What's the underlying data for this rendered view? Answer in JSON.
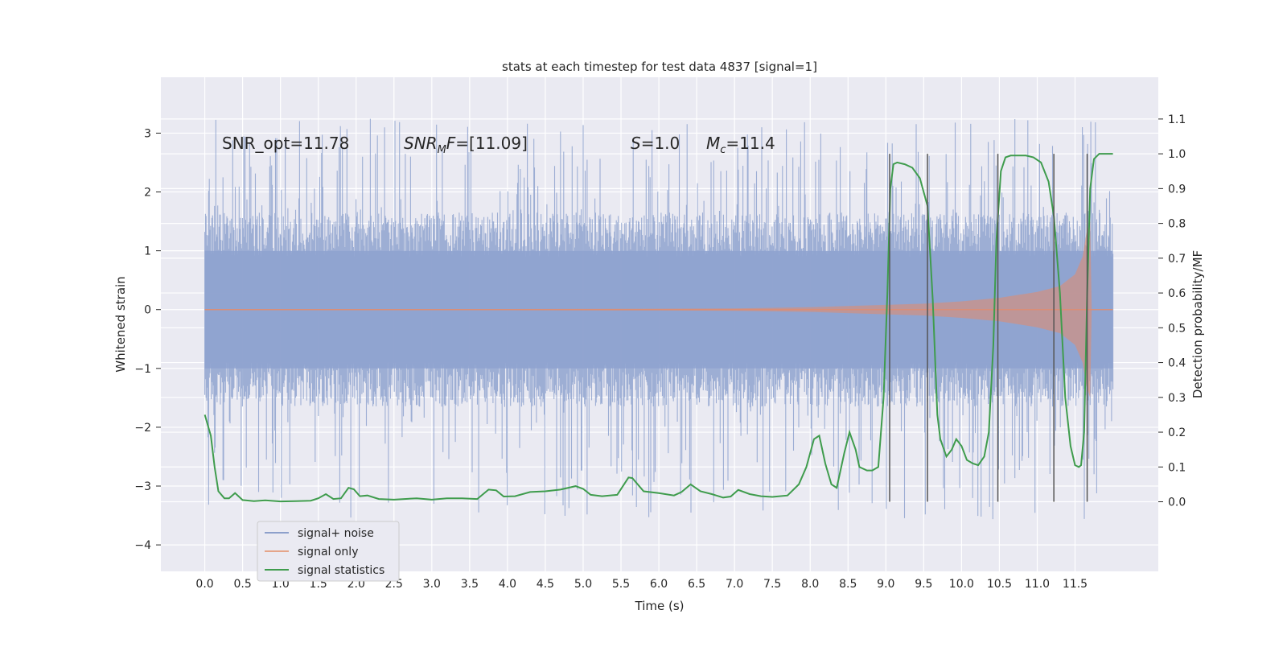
{
  "chart_data": {
    "type": "line",
    "title": "stats at each timestep for test data 4837 [signal=1]",
    "xlabel": "Time (s)",
    "ylabel_left": "Whitened strain",
    "ylabel_right": "Detection probability/MF",
    "xlim": [
      -0.58,
      12.6
    ],
    "ylim_left": [
      -4.45,
      3.95
    ],
    "ylim_right": [
      -0.2,
      1.22
    ],
    "x_ticks": [
      0.0,
      0.5,
      1.0,
      1.5,
      2.0,
      2.5,
      3.0,
      3.5,
      4.0,
      4.5,
      5.0,
      5.5,
      6.0,
      6.5,
      7.0,
      7.5,
      8.0,
      8.5,
      9.0,
      9.5,
      10.0,
      10.5,
      11.0,
      11.5
    ],
    "x_tick_labels": [
      "0.0",
      "0.5",
      "1.0",
      "1.5",
      "2.0",
      "2.5",
      "3.0",
      "3.5",
      "4.0",
      "4.5",
      "5.0",
      "5.5",
      "6.0",
      "6.5",
      "7.0",
      "7.5",
      "8.0",
      "8.5",
      "9.0",
      "9.5",
      "10.0",
      "10.5",
      "11.0",
      "11.5"
    ],
    "y_left_ticks": [
      3,
      2,
      1,
      0,
      -1,
      -2,
      -3,
      -4
    ],
    "y_left_tick_labels": [
      "3",
      "2",
      "1",
      "0",
      "−1",
      "−2",
      "−3",
      "−4"
    ],
    "y_right_ticks": [
      0.0,
      0.1,
      0.2,
      0.3,
      0.4,
      0.5,
      0.6,
      0.7,
      0.8,
      0.9,
      1.0,
      1.1
    ],
    "y_right_tick_labels": [
      "0.0",
      "0.1",
      "0.2",
      "0.3",
      "0.4",
      "0.5",
      "0.6",
      "0.7",
      "0.8",
      "0.9",
      "1.0",
      "1.1"
    ],
    "annotations": [
      {
        "text": "SNR_opt=11.78",
        "x": 0.2,
        "y": 2.7
      },
      {
        "text": "SNR_MF=[11.09]",
        "x": 2.6,
        "y": 2.7
      },
      {
        "text": "S=1.0",
        "x": 5.6,
        "y": 2.7
      },
      {
        "text": "M_c=11.4",
        "x": 6.6,
        "y": 2.7
      }
    ],
    "detection_lines_x": [
      9.05,
      9.55,
      10.48,
      11.22,
      11.66
    ],
    "detection_lines_yrange": [
      0.0,
      1.0
    ],
    "noise": {
      "t_start": 0.0,
      "t_end": 12.0,
      "typical_amplitude": 1.5,
      "peak_amplitude_pos": 3.58,
      "peak_amplitude_neg": -4.08
    },
    "signal_envelope": {
      "t": [
        0.0,
        2.0,
        4.0,
        6.0,
        7.0,
        7.5,
        8.0,
        8.5,
        9.0,
        9.5,
        10.0,
        10.5,
        11.0,
        11.3,
        11.5,
        11.6,
        11.65,
        11.7,
        11.72,
        12.0
      ],
      "amp": [
        0.01,
        0.01,
        0.01,
        0.015,
        0.02,
        0.03,
        0.04,
        0.06,
        0.08,
        0.1,
        0.14,
        0.2,
        0.3,
        0.4,
        0.6,
        0.9,
        1.3,
        1.5,
        0.0,
        0.0
      ]
    },
    "series": [
      {
        "name": "signal statistics",
        "axis": "right",
        "x": [
          0.0,
          0.08,
          0.13,
          0.18,
          0.26,
          0.32,
          0.4,
          0.5,
          0.65,
          0.8,
          1.0,
          1.2,
          1.4,
          1.5,
          1.6,
          1.7,
          1.8,
          1.9,
          1.97,
          2.05,
          2.15,
          2.3,
          2.5,
          2.8,
          3.0,
          3.2,
          3.4,
          3.6,
          3.75,
          3.85,
          3.95,
          4.1,
          4.3,
          4.5,
          4.7,
          4.9,
          5.0,
          5.1,
          5.25,
          5.45,
          5.6,
          5.65,
          5.8,
          6.0,
          6.2,
          6.3,
          6.42,
          6.55,
          6.7,
          6.85,
          6.95,
          7.05,
          7.2,
          7.35,
          7.5,
          7.7,
          7.85,
          7.95,
          8.05,
          8.12,
          8.2,
          8.28,
          8.35,
          8.45,
          8.52,
          8.6,
          8.65,
          8.75,
          8.82,
          8.9,
          8.97,
          9.02,
          9.06,
          9.1,
          9.15,
          9.25,
          9.35,
          9.45,
          9.55,
          9.62,
          9.68,
          9.72,
          9.8,
          9.87,
          9.93,
          10.0,
          10.07,
          10.15,
          10.22,
          10.3,
          10.36,
          10.42,
          10.46,
          10.52,
          10.58,
          10.65,
          10.75,
          10.85,
          10.95,
          11.05,
          11.15,
          11.22,
          11.3,
          11.37,
          11.44,
          11.5,
          11.55,
          11.58,
          11.62,
          11.66,
          11.7,
          11.75,
          11.82,
          11.9,
          11.95,
          12.0
        ],
        "y": [
          0.25,
          0.19,
          0.1,
          0.03,
          0.01,
          0.01,
          0.025,
          0.005,
          0.002,
          0.004,
          0.001,
          0.002,
          0.003,
          0.01,
          0.022,
          0.008,
          0.01,
          0.04,
          0.036,
          0.016,
          0.018,
          0.008,
          0.006,
          0.01,
          0.006,
          0.01,
          0.01,
          0.008,
          0.035,
          0.033,
          0.015,
          0.016,
          0.028,
          0.03,
          0.035,
          0.045,
          0.037,
          0.02,
          0.016,
          0.02,
          0.07,
          0.068,
          0.03,
          0.025,
          0.018,
          0.028,
          0.05,
          0.03,
          0.022,
          0.012,
          0.015,
          0.034,
          0.022,
          0.016,
          0.014,
          0.018,
          0.05,
          0.1,
          0.18,
          0.19,
          0.11,
          0.05,
          0.04,
          0.14,
          0.2,
          0.15,
          0.1,
          0.09,
          0.09,
          0.1,
          0.3,
          0.6,
          0.9,
          0.97,
          0.975,
          0.97,
          0.96,
          0.93,
          0.85,
          0.58,
          0.25,
          0.18,
          0.13,
          0.15,
          0.18,
          0.16,
          0.12,
          0.11,
          0.105,
          0.13,
          0.2,
          0.45,
          0.75,
          0.95,
          0.99,
          0.995,
          0.995,
          0.995,
          0.99,
          0.975,
          0.92,
          0.82,
          0.6,
          0.3,
          0.16,
          0.105,
          0.1,
          0.105,
          0.2,
          0.6,
          0.9,
          0.985,
          1.0,
          1.0,
          1.0,
          1.0
        ]
      }
    ],
    "legend": {
      "placement": "lower-left",
      "entries": [
        {
          "label": "signal+ noise",
          "color": "#8da0cb"
        },
        {
          "label": "signal only",
          "color": "#e5a58a"
        },
        {
          "label": "signal statistics",
          "color": "#3f9c4d"
        }
      ]
    },
    "colors": {
      "plot_background": "#eaeaf2",
      "grid": "#ffffff",
      "noise": "#8fa3cf",
      "signal": "#dd8e73",
      "statistics": "#3f9c4d",
      "detection_lines": "#555555"
    }
  }
}
